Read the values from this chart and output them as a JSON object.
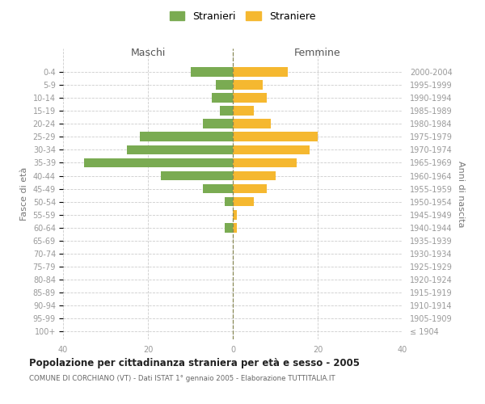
{
  "age_groups": [
    "100+",
    "95-99",
    "90-94",
    "85-89",
    "80-84",
    "75-79",
    "70-74",
    "65-69",
    "60-64",
    "55-59",
    "50-54",
    "45-49",
    "40-44",
    "35-39",
    "30-34",
    "25-29",
    "20-24",
    "15-19",
    "10-14",
    "5-9",
    "0-4"
  ],
  "birth_years": [
    "≤ 1904",
    "1905-1909",
    "1910-1914",
    "1915-1919",
    "1920-1924",
    "1925-1929",
    "1930-1934",
    "1935-1939",
    "1940-1944",
    "1945-1949",
    "1950-1954",
    "1955-1959",
    "1960-1964",
    "1965-1969",
    "1970-1974",
    "1975-1979",
    "1980-1984",
    "1985-1989",
    "1990-1994",
    "1995-1999",
    "2000-2004"
  ],
  "males": [
    0,
    0,
    0,
    0,
    0,
    0,
    0,
    0,
    2,
    0,
    2,
    7,
    17,
    35,
    25,
    22,
    7,
    3,
    5,
    4,
    10
  ],
  "females": [
    0,
    0,
    0,
    0,
    0,
    0,
    0,
    0,
    1,
    1,
    5,
    8,
    10,
    15,
    18,
    20,
    9,
    5,
    8,
    7,
    13
  ],
  "male_color": "#7aab52",
  "female_color": "#f5b830",
  "title": "Popolazione per cittadinanza straniera per età e sesso - 2005",
  "subtitle": "COMUNE DI CORCHIANO (VT) - Dati ISTAT 1° gennaio 2005 - Elaborazione TUTTITALIA.IT",
  "header_left": "Maschi",
  "header_right": "Femmine",
  "ylabel_left": "Fasce di età",
  "ylabel_right": "Anni di nascita",
  "legend_stranieri": "Stranieri",
  "legend_straniere": "Straniere",
  "xlim": 40,
  "background_color": "#ffffff",
  "grid_color": "#cccccc",
  "axis_label_color": "#777777",
  "tick_label_color": "#999999",
  "bar_height": 0.72
}
